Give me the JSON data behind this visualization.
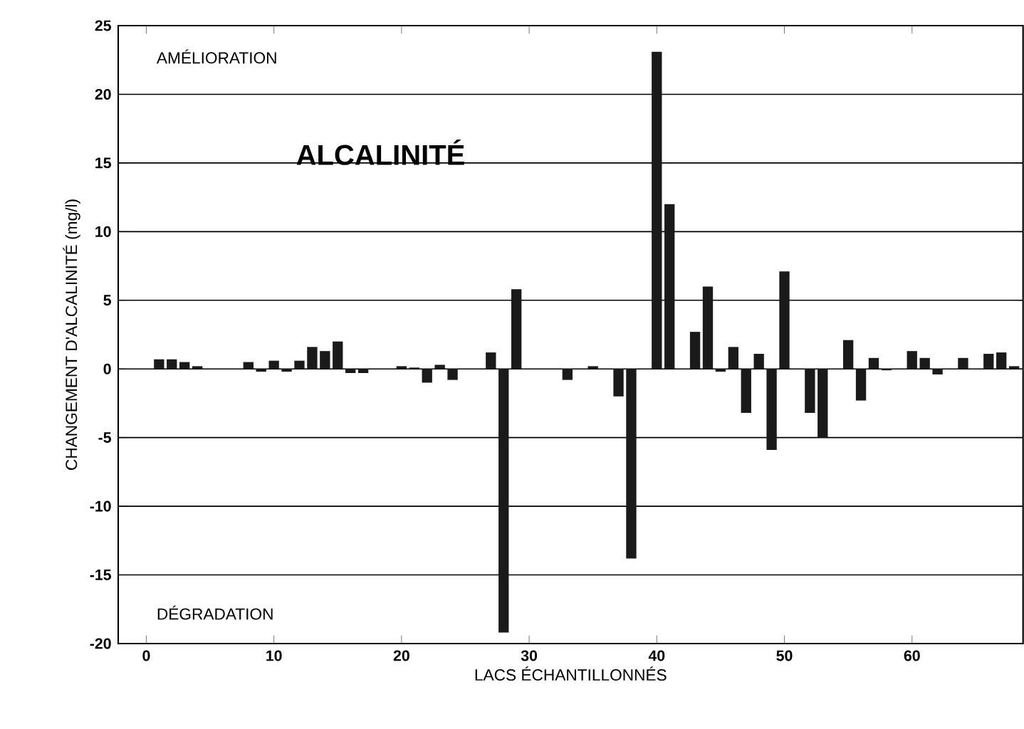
{
  "chart_data": {
    "type": "bar",
    "title": "ALCALINITÉ",
    "xlabel": "LACS ÉCHANTILLONNÉS",
    "ylabel": "CHANGEMENT D'ALCALINITÉ (mg/l)",
    "annotations": [
      "AMÉLIORATION",
      "DÉGRADATION"
    ],
    "x": [
      1,
      2,
      3,
      4,
      8,
      9,
      10,
      11,
      12,
      13,
      14,
      15,
      16,
      17,
      20,
      21,
      22,
      23,
      24,
      27,
      28,
      29,
      33,
      35,
      37,
      38,
      40,
      41,
      43,
      44,
      45,
      46,
      47,
      48,
      49,
      50,
      52,
      53,
      55,
      56,
      57,
      58,
      60,
      61,
      62,
      64,
      66,
      67,
      68
    ],
    "values": [
      0.7,
      0.7,
      0.5,
      0.2,
      0.5,
      -0.2,
      0.6,
      -0.2,
      0.6,
      1.6,
      1.3,
      2.0,
      -0.3,
      -0.3,
      0.2,
      0.1,
      -1.0,
      0.3,
      -0.8,
      1.2,
      -19.2,
      5.8,
      -0.8,
      0.2,
      -2.0,
      -13.8,
      23.1,
      12.0,
      2.7,
      6.0,
      -0.2,
      1.6,
      -3.2,
      1.1,
      -5.9,
      7.1,
      -3.2,
      -5.0,
      2.1,
      -2.3,
      0.8,
      -0.1,
      1.3,
      0.8,
      -0.4,
      0.8,
      1.1,
      1.2,
      0.2
    ],
    "color": "#1a1a1a",
    "xlim": [
      -2.2,
      68.7
    ],
    "ylim": [
      -20,
      25
    ],
    "xticks": [
      0,
      10,
      20,
      30,
      40,
      50,
      60
    ],
    "yticks": [
      -20,
      -15,
      -10,
      -5,
      0,
      5,
      10,
      15,
      20,
      25
    ],
    "grid": "y"
  }
}
